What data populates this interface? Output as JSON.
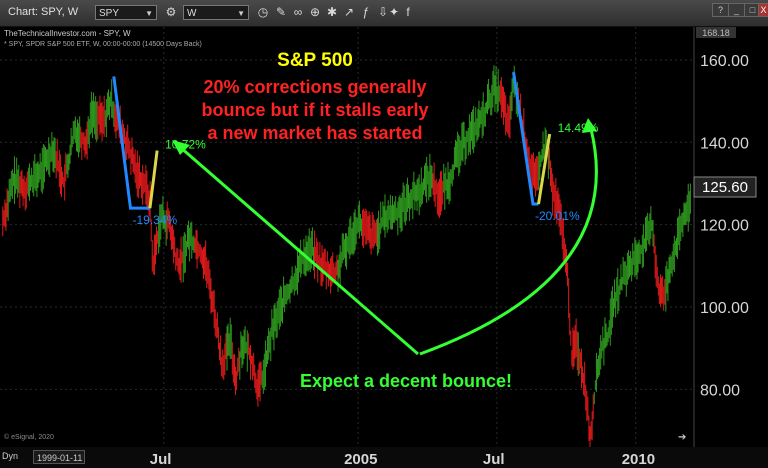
{
  "window": {
    "title": "Chart: SPY, W",
    "symbol": "SPY",
    "interval": "W",
    "controls": {
      "help": "?",
      "minimize": "_",
      "maximize": "□",
      "close": "X"
    }
  },
  "chart_info": {
    "source": "TheTechnicalInvestor.com - SPY, W",
    "description": "* SPY, SPDR S&P 500 ETF, W, 00:00-00:00 (14500 Days Back)",
    "copyright": "© eSignal, 2020",
    "last_price_badge": "125.60",
    "top_scale_label": "168.18"
  },
  "footer": {
    "dyn_label": "Dyn",
    "start_date": "1999-01-11"
  },
  "colors": {
    "accent_red": "#ff2222",
    "accent_green": "#33ff33",
    "accent_yellow": "#ffff00",
    "accent_blue": "#2288ff"
  },
  "chart_data": {
    "type": "line",
    "title": "S&P 500",
    "subtitle": [
      "20% corrections generally",
      "bounce but if it stalls early",
      "a new market has started"
    ],
    "bottom_annotation": "Expect a decent bounce!",
    "y_ticks": [
      "80.00",
      "100.00",
      "120.00",
      "140.00",
      "160.00"
    ],
    "y_tick_values": [
      80,
      100,
      120,
      140,
      160
    ],
    "ylim": [
      66,
      168
    ],
    "x_ticks": [
      "Jul",
      "2005",
      "Jul",
      "2010"
    ],
    "x_tick_values": [
      2001.5,
      2005.0,
      2007.5,
      2010.0
    ],
    "xlim": [
      1998.55,
      2011.05
    ],
    "series": [
      {
        "name": "SPY weekly",
        "points": [
          [
            1998.6,
            121
          ],
          [
            1998.8,
            131
          ],
          [
            1999.0,
            129
          ],
          [
            1999.3,
            133
          ],
          [
            1999.5,
            139
          ],
          [
            1999.7,
            130
          ],
          [
            1999.9,
            143
          ],
          [
            2000.1,
            140
          ],
          [
            2000.2,
            147
          ],
          [
            2000.4,
            145
          ],
          [
            2000.55,
            150
          ],
          [
            2000.7,
            144
          ],
          [
            2000.9,
            137
          ],
          [
            2001.0,
            133
          ],
          [
            2001.15,
            130
          ],
          [
            2001.25,
            126
          ],
          [
            2001.3,
            110
          ],
          [
            2001.45,
            122
          ],
          [
            2001.6,
            120
          ],
          [
            2001.75,
            110
          ],
          [
            2001.85,
            112
          ],
          [
            2001.95,
            117
          ],
          [
            2002.1,
            115
          ],
          [
            2002.25,
            111
          ],
          [
            2002.4,
            100
          ],
          [
            2002.55,
            86
          ],
          [
            2002.7,
            92
          ],
          [
            2002.8,
            82
          ],
          [
            2002.9,
            91
          ],
          [
            2003.05,
            89
          ],
          [
            2003.2,
            80
          ],
          [
            2003.3,
            84
          ],
          [
            2003.45,
            94
          ],
          [
            2003.6,
            100
          ],
          [
            2003.8,
            105
          ],
          [
            2004.0,
            112
          ],
          [
            2004.15,
            114
          ],
          [
            2004.35,
            110
          ],
          [
            2004.6,
            108
          ],
          [
            2004.8,
            115
          ],
          [
            2005.0,
            121
          ],
          [
            2005.1,
            119
          ],
          [
            2005.3,
            117
          ],
          [
            2005.5,
            122
          ],
          [
            2005.7,
            123
          ],
          [
            2005.9,
            126
          ],
          [
            2006.1,
            128
          ],
          [
            2006.3,
            132
          ],
          [
            2006.45,
            127
          ],
          [
            2006.65,
            131
          ],
          [
            2006.8,
            137
          ],
          [
            2007.0,
            142
          ],
          [
            2007.2,
            145
          ],
          [
            2007.3,
            148
          ],
          [
            2007.45,
            153
          ],
          [
            2007.55,
            152
          ],
          [
            2007.65,
            147
          ],
          [
            2007.72,
            143
          ],
          [
            2007.78,
            154
          ],
          [
            2007.85,
            152
          ],
          [
            2007.95,
            145
          ],
          [
            2008.1,
            134
          ],
          [
            2008.2,
            130
          ],
          [
            2008.3,
            136
          ],
          [
            2008.4,
            140
          ],
          [
            2008.5,
            128
          ],
          [
            2008.6,
            124
          ],
          [
            2008.72,
            115
          ],
          [
            2008.78,
            105
          ],
          [
            2008.85,
            88
          ],
          [
            2008.92,
            92
          ],
          [
            2009.0,
            87
          ],
          [
            2009.1,
            80
          ],
          [
            2009.18,
            68
          ],
          [
            2009.28,
            82
          ],
          [
            2009.38,
            90
          ],
          [
            2009.5,
            93
          ],
          [
            2009.6,
            101
          ],
          [
            2009.75,
            106
          ],
          [
            2009.9,
            110
          ],
          [
            2010.0,
            112
          ],
          [
            2010.15,
            115
          ],
          [
            2010.3,
            120
          ],
          [
            2010.4,
            105
          ],
          [
            2010.5,
            102
          ],
          [
            2010.62,
            110
          ],
          [
            2010.75,
            116
          ],
          [
            2010.88,
            122
          ],
          [
            2011.0,
            125.6
          ]
        ]
      }
    ],
    "correction_markers": [
      {
        "label": "-19.34%",
        "points": [
          [
            2000.6,
            156
          ],
          [
            2000.9,
            124
          ],
          [
            2001.25,
            124
          ]
        ]
      },
      {
        "label": "-20.01%",
        "points": [
          [
            2007.8,
            157
          ],
          [
            2008.15,
            125
          ],
          [
            2008.25,
            125
          ]
        ]
      }
    ],
    "bounce_markers": [
      {
        "label": "10.72%",
        "points": [
          [
            2001.25,
            124
          ],
          [
            2001.38,
            138
          ]
        ]
      },
      {
        "label": "14.49%",
        "points": [
          [
            2008.25,
            125
          ],
          [
            2008.45,
            142
          ]
        ]
      }
    ]
  }
}
